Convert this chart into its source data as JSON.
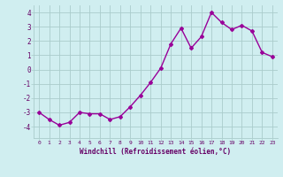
{
  "x": [
    0,
    1,
    2,
    3,
    4,
    5,
    6,
    7,
    8,
    9,
    10,
    11,
    12,
    13,
    14,
    15,
    16,
    17,
    18,
    19,
    20,
    21,
    22,
    23
  ],
  "y": [
    -3.0,
    -3.5,
    -3.9,
    -3.7,
    -3.0,
    -3.1,
    -3.1,
    -3.5,
    -3.3,
    -2.6,
    -1.8,
    -0.9,
    0.1,
    1.8,
    2.9,
    1.5,
    2.3,
    4.0,
    3.3,
    2.8,
    3.1,
    2.7,
    1.2,
    0.9
  ],
  "line_color": "#990099",
  "marker": "D",
  "markersize": 2.0,
  "linewidth": 1.0,
  "bg_color": "#d0eef0",
  "grid_color": "#aacccc",
  "xlabel": "Windchill (Refroidissement éolien,°C)",
  "xlabel_color": "#660066",
  "tick_color": "#660066",
  "ylim": [
    -4.8,
    4.5
  ],
  "xlim": [
    -0.5,
    23.5
  ],
  "yticks": [
    -4,
    -3,
    -2,
    -1,
    0,
    1,
    2,
    3,
    4
  ],
  "xticks": [
    0,
    1,
    2,
    3,
    4,
    5,
    6,
    7,
    8,
    9,
    10,
    11,
    12,
    13,
    14,
    15,
    16,
    17,
    18,
    19,
    20,
    21,
    22,
    23
  ]
}
